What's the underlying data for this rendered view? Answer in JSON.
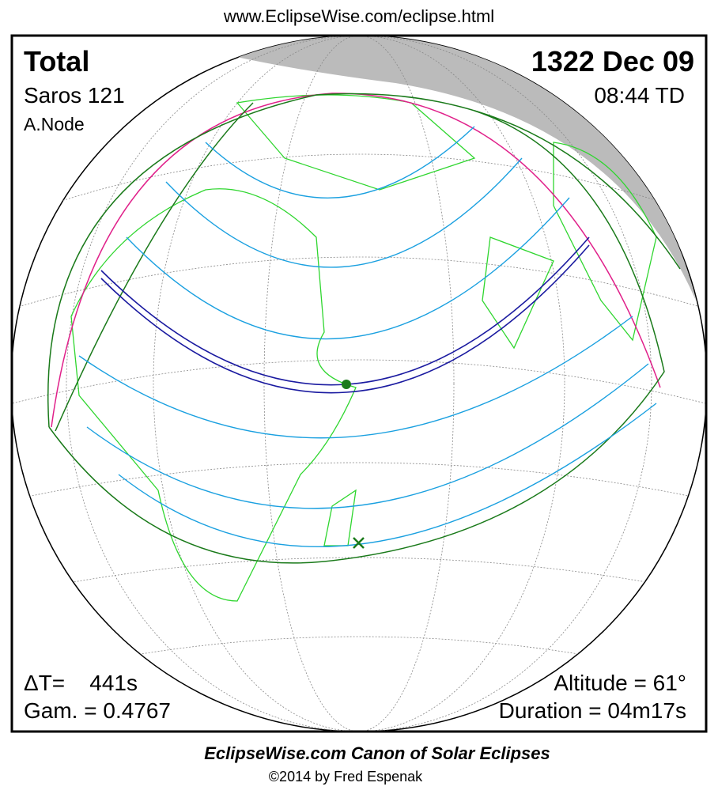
{
  "header": {
    "url": "www.EclipseWise.com/eclipse.html"
  },
  "info": {
    "type": "Total",
    "saros": "Saros 121",
    "node": "A.Node",
    "date": "1322 Dec 09",
    "time": "08:44 TD",
    "delta_t": "ΔT=    441s",
    "gamma": "Gam. = 0.4767",
    "altitude": "Altitude = 61°",
    "duration": "Duration = 04m17s"
  },
  "footer": {
    "title": "EclipseWise.com Canon of Solar Eclipses",
    "copyright": "©2014 by Fred Espenak"
  }
}
